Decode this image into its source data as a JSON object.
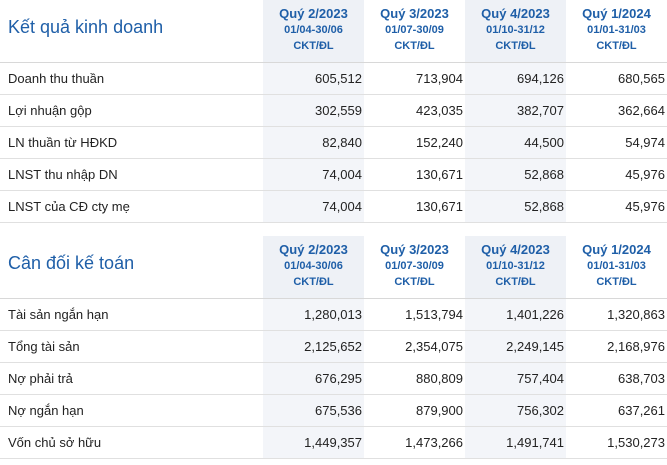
{
  "income": {
    "title": "Kết quả kinh doanh",
    "periods": [
      {
        "quarter": "Quý 2/2023",
        "range": "01/04-30/06",
        "audit": "CKT/ĐL"
      },
      {
        "quarter": "Quý 3/2023",
        "range": "01/07-30/09",
        "audit": "CKT/ĐL"
      },
      {
        "quarter": "Quý 4/2023",
        "range": "01/10-31/12",
        "audit": "CKT/ĐL"
      },
      {
        "quarter": "Quý 1/2024",
        "range": "01/01-31/03",
        "audit": "CKT/ĐL"
      }
    ],
    "rows": [
      {
        "label": "Doanh thu thuần",
        "values": [
          "605,512",
          "713,904",
          "694,126",
          "680,565"
        ]
      },
      {
        "label": "Lợi nhuận gộp",
        "values": [
          "302,559",
          "423,035",
          "382,707",
          "362,664"
        ]
      },
      {
        "label": "LN thuần từ HĐKD",
        "values": [
          "82,840",
          "152,240",
          "44,500",
          "54,974"
        ]
      },
      {
        "label": "LNST thu nhập DN",
        "values": [
          "74,004",
          "130,671",
          "52,868",
          "45,976"
        ]
      },
      {
        "label": "LNST của CĐ cty mẹ",
        "values": [
          "74,004",
          "130,671",
          "52,868",
          "45,976"
        ]
      }
    ]
  },
  "balance": {
    "title": "Cân đối kế toán",
    "periods": [
      {
        "quarter": "Quý 2/2023",
        "range": "01/04-30/06",
        "audit": "CKT/ĐL"
      },
      {
        "quarter": "Quý 3/2023",
        "range": "01/07-30/09",
        "audit": "CKT/ĐL"
      },
      {
        "quarter": "Quý 4/2023",
        "range": "01/10-31/12",
        "audit": "CKT/ĐL"
      },
      {
        "quarter": "Quý 1/2024",
        "range": "01/01-31/03",
        "audit": "CKT/ĐL"
      }
    ],
    "rows": [
      {
        "label": "Tài sản ngắn hạn",
        "values": [
          "1,280,013",
          "1,513,794",
          "1,401,226",
          "1,320,863"
        ]
      },
      {
        "label": "Tổng tài sản",
        "values": [
          "2,125,652",
          "2,354,075",
          "2,249,145",
          "2,168,976"
        ]
      },
      {
        "label": "Nợ phải trả",
        "values": [
          "676,295",
          "880,809",
          "757,404",
          "638,703"
        ]
      },
      {
        "label": "Nợ ngắn hạn",
        "values": [
          "675,536",
          "879,900",
          "756,302",
          "637,261"
        ]
      },
      {
        "label": "Vốn chủ sở hữu",
        "values": [
          "1,449,357",
          "1,473,266",
          "1,491,741",
          "1,530,273"
        ]
      }
    ]
  },
  "colors": {
    "accent": "#1f5fa8",
    "shade": "#eef1f6"
  }
}
